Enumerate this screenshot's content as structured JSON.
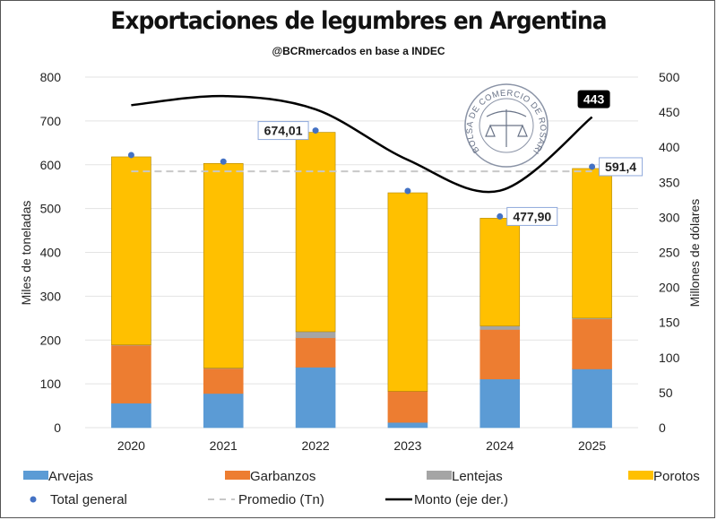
{
  "chart_data": {
    "type": "bar",
    "stacked": true,
    "title": "Exportaciones de legumbres en Argentina",
    "subtitle": "@BCRmercados en base a INDEC",
    "ylabel": "Miles de toneladas",
    "y2label": "Millones de dólares",
    "ylim": [
      0,
      800
    ],
    "y2lim": [
      0,
      500
    ],
    "yticks": [
      "0",
      "100",
      "200",
      "300",
      "400",
      "500",
      "600",
      "700",
      "800"
    ],
    "y2ticks": [
      "0",
      "50",
      "100",
      "150",
      "200",
      "250",
      "300",
      "350",
      "400",
      "450",
      "500"
    ],
    "categories": [
      "2020",
      "2021",
      "2022",
      "2023",
      "2024",
      "2025"
    ],
    "grid": true,
    "series": [
      {
        "name": "Arvejas",
        "color": "#5B9BD5",
        "values": [
          56,
          78,
          138,
          12,
          111,
          134
        ]
      },
      {
        "name": "Garbanzos",
        "color": "#ED7D31",
        "values": [
          132,
          57,
          67,
          71,
          113,
          114
        ]
      },
      {
        "name": "Lentejas",
        "color": "#A5A5A5",
        "values": [
          1,
          1,
          14,
          0,
          8,
          2
        ]
      },
      {
        "name": "Porotos",
        "color": "#FFC000",
        "values": [
          429,
          467,
          455,
          453,
          246,
          341.4
        ]
      }
    ],
    "total": {
      "name": "Total general",
      "color": "#4472C4",
      "values": [
        618,
        603,
        674.01,
        536,
        477.9,
        591.4
      ],
      "labels": [
        "",
        "",
        "674,01",
        "",
        "477,90",
        "591,4"
      ]
    },
    "average": {
      "name": "Promedio (Tn)",
      "color": "#C8C8C8",
      "value": 585
    },
    "monto": {
      "name": "Monto (eje der.)",
      "color": "#000000",
      "axis": "right",
      "values": [
        460,
        473,
        454,
        382,
        338,
        443
      ],
      "end_label": "443"
    },
    "legend_position": "bottom",
    "seal_text": "BOLSA DE COMERCIO DE ROSARIO"
  }
}
